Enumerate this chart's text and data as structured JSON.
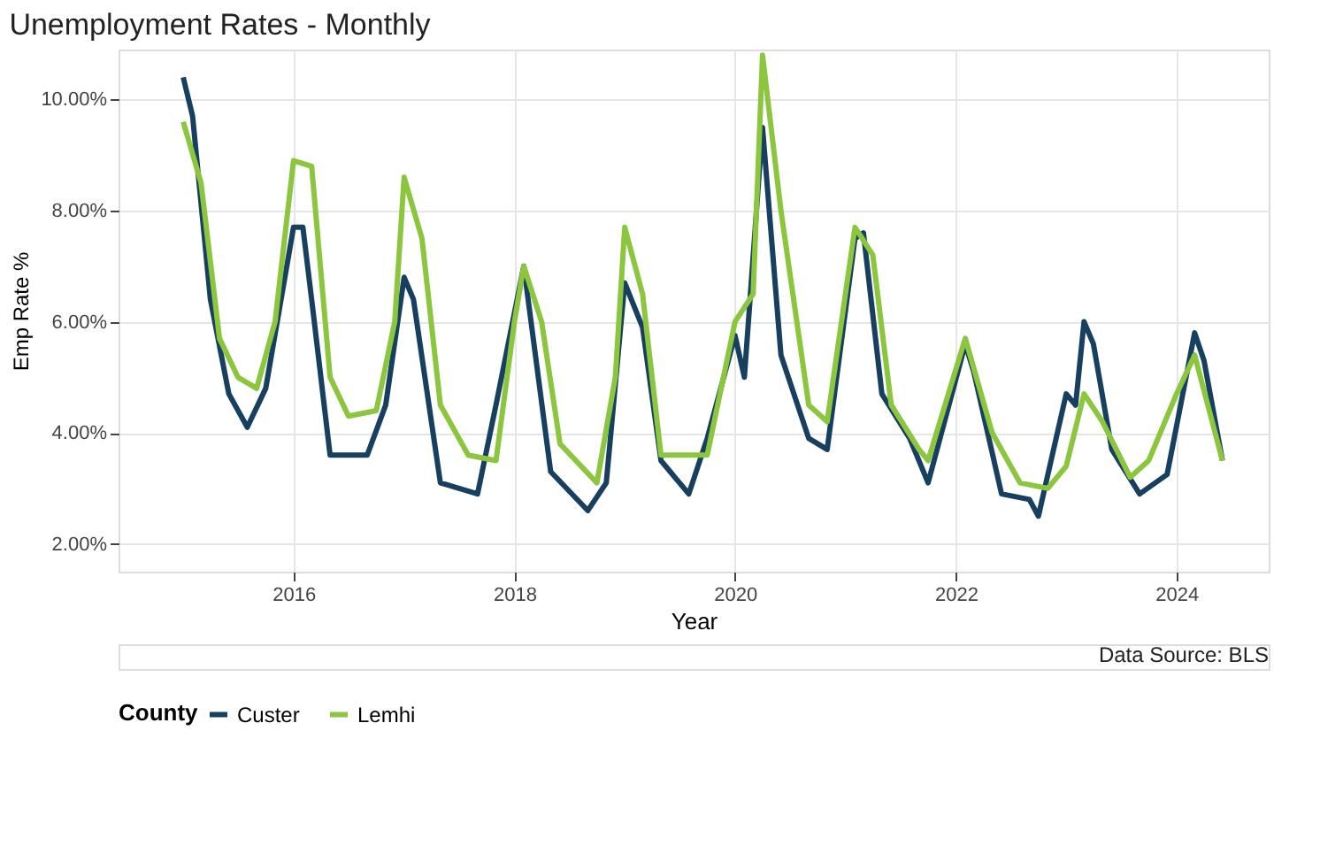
{
  "chart_data": {
    "type": "line",
    "title": "Unemployment Rates - Monthly",
    "xlabel": "Year",
    "ylabel": "Emp Rate %",
    "legend_title": "County",
    "legend": "bottom",
    "grid": true,
    "annotations": [
      "Data Source: BLS"
    ],
    "xlim": [
      "2014-06",
      "2024-11"
    ],
    "xticks": [
      {
        "value": "2016",
        "label": "2016"
      },
      {
        "value": "2018",
        "label": "2018"
      },
      {
        "value": "2020",
        "label": "2020"
      },
      {
        "value": "2022",
        "label": "2022"
      },
      {
        "value": "2024",
        "label": "2024"
      }
    ],
    "ylim": [
      1.5,
      10.9
    ],
    "yticks": [
      {
        "value": 2,
        "label": "2.00%"
      },
      {
        "value": 4,
        "label": "4.00%"
      },
      {
        "value": 6,
        "label": "6.00%"
      },
      {
        "value": 8,
        "label": "8.00%"
      },
      {
        "value": 10,
        "label": "10.00%"
      }
    ],
    "series": [
      {
        "name": "Custer",
        "color": "#173f5f",
        "x": [
          "2015-01",
          "2015-02",
          "2015-04",
          "2015-06",
          "2015-08",
          "2015-10",
          "2016-01",
          "2016-02",
          "2016-03",
          "2016-05",
          "2016-09",
          "2016-11",
          "2017-01",
          "2017-02",
          "2017-05",
          "2017-09",
          "2017-11",
          "2018-02",
          "2018-05",
          "2018-09",
          "2018-11",
          "2019-01",
          "2019-03",
          "2019-05",
          "2019-08",
          "2019-10",
          "2020-01",
          "2020-02",
          "2020-04",
          "2020-06",
          "2020-09",
          "2020-11",
          "2021-02",
          "2021-03",
          "2021-05",
          "2021-08",
          "2021-10",
          "2022-02",
          "2022-03",
          "2022-06",
          "2022-09",
          "2022-10",
          "2023-01",
          "2023-02",
          "2023-03",
          "2023-04",
          "2023-06",
          "2023-09",
          "2023-12",
          "2024-03",
          "2024-04",
          "2024-06"
        ],
        "values": [
          10.4,
          9.7,
          6.4,
          4.7,
          4.1,
          4.8,
          7.7,
          7.7,
          6.4,
          3.6,
          3.6,
          4.5,
          6.8,
          6.4,
          3.1,
          2.9,
          4.5,
          7.0,
          3.3,
          2.6,
          3.1,
          6.7,
          5.9,
          3.5,
          2.9,
          3.9,
          5.75,
          5.0,
          9.5,
          5.4,
          3.9,
          3.7,
          7.5,
          7.6,
          4.7,
          3.9,
          3.1,
          5.6,
          5.1,
          2.9,
          2.8,
          2.5,
          4.7,
          4.5,
          6.0,
          5.6,
          3.7,
          2.9,
          3.25,
          5.8,
          5.3,
          3.5
        ]
      },
      {
        "name": "Lemhi",
        "color": "#8cc63f",
        "x": [
          "2015-01",
          "2015-03",
          "2015-05",
          "2015-07",
          "2015-09",
          "2015-11",
          "2016-01",
          "2016-03",
          "2016-05",
          "2016-07",
          "2016-10",
          "2016-12",
          "2017-01",
          "2017-03",
          "2017-05",
          "2017-08",
          "2017-11",
          "2018-01",
          "2018-02",
          "2018-04",
          "2018-06",
          "2018-10",
          "2018-12",
          "2019-01",
          "2019-03",
          "2019-05",
          "2019-08",
          "2019-10",
          "2020-01",
          "2020-03",
          "2020-04",
          "2020-06",
          "2020-09",
          "2020-11",
          "2021-02",
          "2021-04",
          "2021-06",
          "2021-09",
          "2021-10",
          "2022-02",
          "2022-05",
          "2022-08",
          "2022-11",
          "2023-01",
          "2023-03",
          "2023-05",
          "2023-08",
          "2023-10",
          "2024-01",
          "2024-03",
          "2024-06"
        ],
        "values": [
          9.6,
          8.5,
          5.7,
          5.0,
          4.8,
          6.0,
          8.9,
          8.8,
          5.0,
          4.3,
          4.4,
          6.0,
          8.6,
          7.5,
          4.5,
          3.6,
          3.5,
          6.0,
          7.0,
          6.0,
          3.8,
          3.1,
          5.0,
          7.7,
          6.5,
          3.6,
          3.6,
          3.6,
          6.0,
          6.5,
          10.8,
          8.0,
          4.5,
          4.2,
          7.7,
          7.2,
          4.5,
          3.7,
          3.5,
          5.7,
          4.0,
          3.1,
          3.0,
          3.4,
          4.7,
          4.2,
          3.2,
          3.5,
          4.7,
          5.4,
          3.5
        ]
      }
    ]
  }
}
